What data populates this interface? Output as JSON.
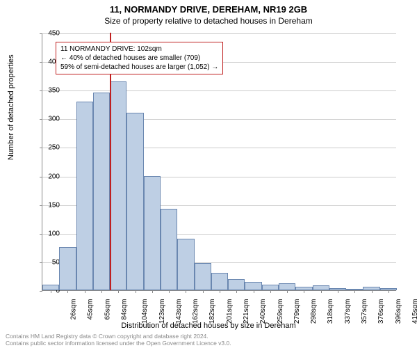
{
  "titles": {
    "line1": "11, NORMANDY DRIVE, DEREHAM, NR19 2GB",
    "line2": "Size of property relative to detached houses in Dereham"
  },
  "axes": {
    "ylabel": "Number of detached properties",
    "xlabel": "Distribution of detached houses by size in Dereham",
    "ymax": 450,
    "ytick_step": 50,
    "yticks": [
      0,
      50,
      100,
      150,
      200,
      250,
      300,
      350,
      400,
      450
    ]
  },
  "infobox": {
    "line1": "11 NORMANDY DRIVE: 102sqm",
    "line2": "← 40% of detached houses are smaller (709)",
    "line3": "59% of semi-detached houses are larger (1,052) →"
  },
  "marker_sqm": 102,
  "chart": {
    "type": "histogram",
    "bar_fill": "#becfe4",
    "bar_stroke": "#6a87b0",
    "grid_color": "#cccccc",
    "marker_color": "#c02020",
    "bins": [
      {
        "label": "26sqm",
        "value": 10
      },
      {
        "label": "45sqm",
        "value": 75
      },
      {
        "label": "65sqm",
        "value": 330
      },
      {
        "label": "84sqm",
        "value": 345
      },
      {
        "label": "104sqm",
        "value": 365
      },
      {
        "label": "123sqm",
        "value": 310
      },
      {
        "label": "143sqm",
        "value": 200
      },
      {
        "label": "162sqm",
        "value": 142
      },
      {
        "label": "182sqm",
        "value": 90
      },
      {
        "label": "201sqm",
        "value": 48
      },
      {
        "label": "221sqm",
        "value": 30
      },
      {
        "label": "240sqm",
        "value": 20
      },
      {
        "label": "259sqm",
        "value": 15
      },
      {
        "label": "279sqm",
        "value": 10
      },
      {
        "label": "298sqm",
        "value": 12
      },
      {
        "label": "318sqm",
        "value": 6
      },
      {
        "label": "337sqm",
        "value": 8
      },
      {
        "label": "357sqm",
        "value": 4
      },
      {
        "label": "376sqm",
        "value": 3
      },
      {
        "label": "396sqm",
        "value": 6
      },
      {
        "label": "415sqm",
        "value": 4
      }
    ]
  },
  "footer": {
    "line1": "Contains HM Land Registry data © Crown copyright and database right 2024.",
    "line2": "Contains public sector information licensed under the Open Government Licence v3.0."
  }
}
